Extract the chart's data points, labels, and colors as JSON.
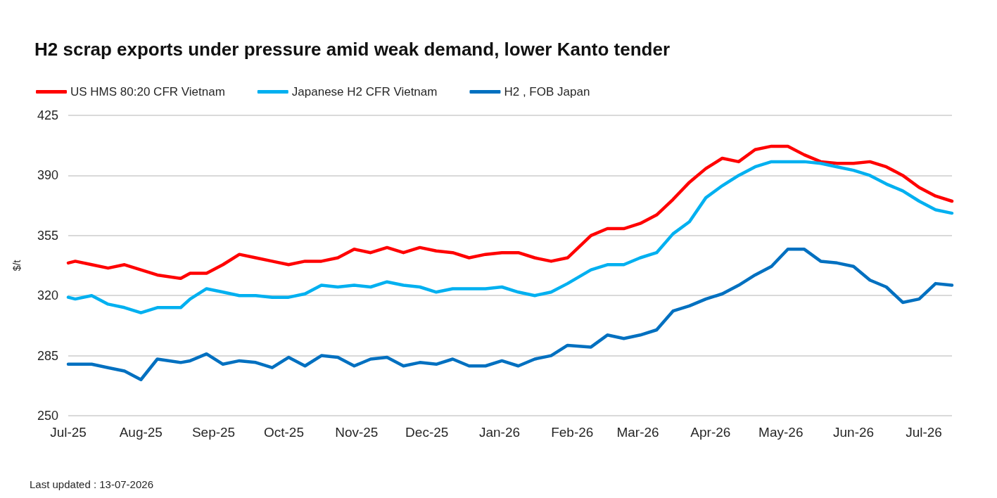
{
  "chart_data": {
    "type": "line",
    "title": "H2 scrap exports under pressure amid weak demand, lower Kanto tender",
    "ylabel": "$/t",
    "annotations": [
      "Last updated : 13-07-2026"
    ],
    "x": [
      "2025-07-01",
      "2025-07-04",
      "2025-07-11",
      "2025-07-18",
      "2025-07-25",
      "2025-08-01",
      "2025-08-08",
      "2025-08-18",
      "2025-08-22",
      "2025-08-29",
      "2025-09-05",
      "2025-09-12",
      "2025-09-19",
      "2025-09-26",
      "2025-10-03",
      "2025-10-10",
      "2025-10-17",
      "2025-10-24",
      "2025-10-31",
      "2025-11-07",
      "2025-11-14",
      "2025-11-21",
      "2025-11-28",
      "2025-12-05",
      "2025-12-12",
      "2025-12-19",
      "2025-12-26",
      "2026-01-02",
      "2026-01-09",
      "2026-01-16",
      "2026-01-23",
      "2026-01-30",
      "2026-02-09",
      "2026-02-16",
      "2026-02-23",
      "2026-03-02",
      "2026-03-09",
      "2026-03-16",
      "2026-03-23",
      "2026-03-30",
      "2026-04-06",
      "2026-04-13",
      "2026-04-20",
      "2026-04-27",
      "2026-05-04",
      "2026-05-11",
      "2026-05-18",
      "2026-05-25",
      "2026-06-01",
      "2026-06-08",
      "2026-06-15",
      "2026-06-22",
      "2026-06-29",
      "2026-07-06",
      "2026-07-13"
    ],
    "series": [
      {
        "name": "US HMS 80:20 CFR Vietnam",
        "color": "#ff0000",
        "values": [
          339,
          340,
          338,
          336,
          338,
          335,
          332,
          330,
          333,
          333,
          338,
          344,
          342,
          340,
          338,
          340,
          340,
          342,
          347,
          345,
          348,
          345,
          348,
          346,
          345,
          342,
          344,
          345,
          345,
          342,
          340,
          342,
          355,
          359,
          359,
          362,
          367,
          376,
          386,
          394,
          400,
          398,
          405,
          407,
          407,
          402,
          398,
          397,
          397,
          398,
          395,
          390,
          383,
          378,
          375
        ]
      },
      {
        "name": "Japanese H2 CFR Vietnam",
        "color": "#00b0f0",
        "values": [
          319,
          318,
          320,
          315,
          313,
          310,
          313,
          313,
          318,
          324,
          322,
          320,
          320,
          319,
          319,
          321,
          326,
          325,
          326,
          325,
          328,
          326,
          325,
          322,
          324,
          324,
          324,
          325,
          322,
          320,
          322,
          327,
          335,
          338,
          338,
          342,
          345,
          356,
          363,
          377,
          384,
          390,
          395,
          398,
          398,
          398,
          397,
          395,
          393,
          390,
          385,
          381,
          375,
          370,
          368
        ]
      },
      {
        "name": "H2 , FOB Japan",
        "color": "#0070c0",
        "values": [
          280,
          280,
          280,
          278,
          276,
          271,
          283,
          281,
          282,
          286,
          280,
          282,
          281,
          278,
          284,
          279,
          285,
          284,
          279,
          283,
          284,
          279,
          281,
          280,
          283,
          279,
          279,
          282,
          279,
          283,
          285,
          291,
          290,
          297,
          295,
          297,
          300,
          311,
          314,
          318,
          321,
          326,
          332,
          337,
          347,
          347,
          340,
          339,
          337,
          329,
          325,
          316,
          318,
          327,
          326
        ]
      }
    ],
    "xlim": [
      "2025-07-01",
      "2026-07-13"
    ],
    "xticks": [
      {
        "value": "2025-07-01",
        "label": "Jul-25"
      },
      {
        "value": "2025-08-01",
        "label": "Aug-25"
      },
      {
        "value": "2025-09-01",
        "label": "Sep-25"
      },
      {
        "value": "2025-10-01",
        "label": "Oct-25"
      },
      {
        "value": "2025-11-01",
        "label": "Nov-25"
      },
      {
        "value": "2025-12-01",
        "label": "Dec-25"
      },
      {
        "value": "2026-01-01",
        "label": "Jan-26"
      },
      {
        "value": "2026-02-01",
        "label": "Feb-26"
      },
      {
        "value": "2026-03-01",
        "label": "Mar-26"
      },
      {
        "value": "2026-04-01",
        "label": "Apr-26"
      },
      {
        "value": "2026-05-01",
        "label": "May-26"
      },
      {
        "value": "2026-06-01",
        "label": "Jun-26"
      },
      {
        "value": "2026-07-01",
        "label": "Jul-26"
      }
    ],
    "ylim": [
      250,
      425
    ],
    "yticks": [
      250,
      285,
      320,
      355,
      390,
      425
    ],
    "grid": "y",
    "legend": "top left"
  }
}
